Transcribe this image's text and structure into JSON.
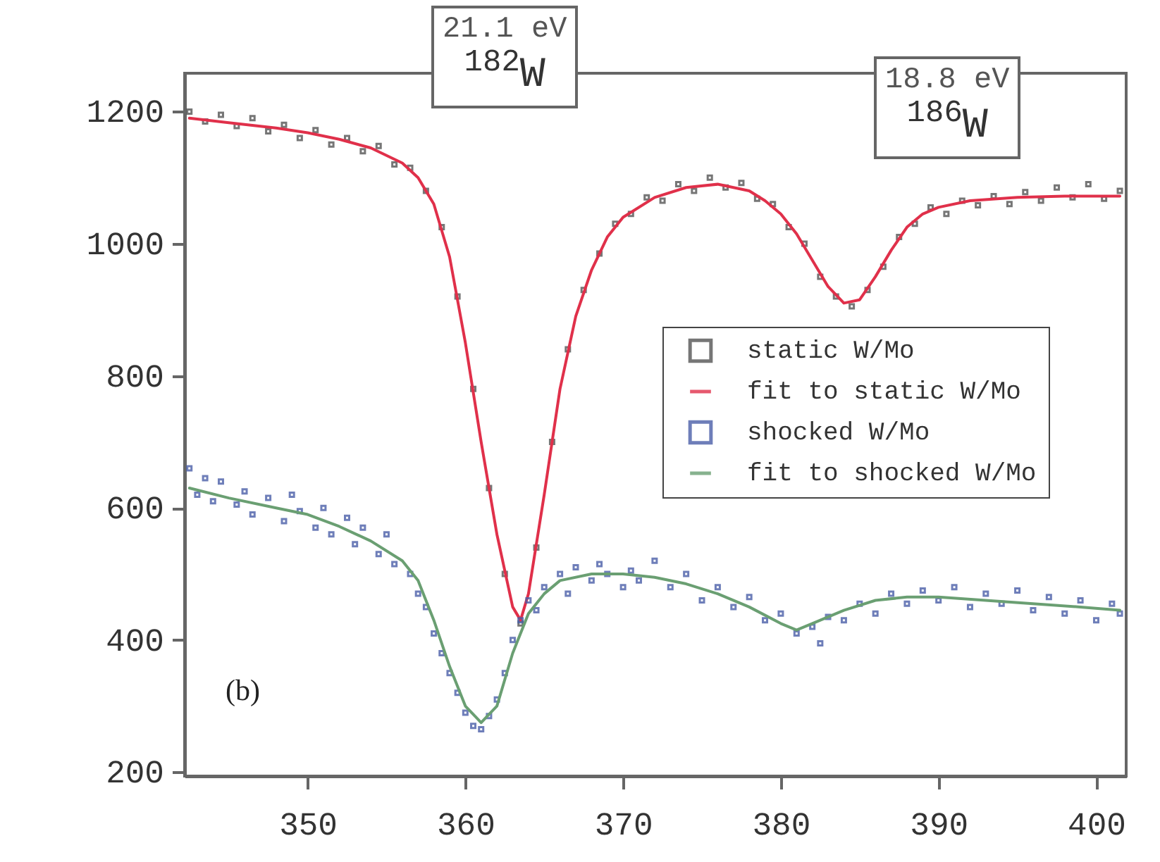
{
  "chart_data": {
    "type": "scatter",
    "xlim": [
      342.2,
      401.9
    ],
    "xticks": [
      350,
      360,
      370,
      380,
      390,
      400
    ],
    "ylim": [
      194,
      1258
    ],
    "yticks": [
      200,
      400,
      600,
      800,
      1000,
      1200
    ],
    "legend": "right",
    "grid": false,
    "line_style": "solid",
    "annotations": [
      "21.1 eV\n$^{182}$W",
      "18.8 eV\n$^{186}$W",
      "(b)"
    ],
    "series": [
      {
        "name": "static W/Mo",
        "marker": "square",
        "color": "#555555",
        "x": [
          342.5,
          343.5,
          344.5,
          345.5,
          346.5,
          347.5,
          348.5,
          349.5,
          350.5,
          351.5,
          352.5,
          353.5,
          354.5,
          355.5,
          356.5,
          357.5,
          358.5,
          359.5,
          360.5,
          361.5,
          362.5,
          363.5,
          364.5,
          365.5,
          366.5,
          367.5,
          368.5,
          369.5,
          370.5,
          371.5,
          372.5,
          373.5,
          374.5,
          375.5,
          376.5,
          377.5,
          378.5,
          379.5,
          380.5,
          381.5,
          382.5,
          383.5,
          384.5,
          385.5,
          386.5,
          387.5,
          388.5,
          389.5,
          390.5,
          391.5,
          392.5,
          393.5,
          394.5,
          395.5,
          396.5,
          397.5,
          398.5,
          399.5,
          400.5,
          401.5
        ],
        "values": [
          1200,
          1185,
          1195,
          1178,
          1190,
          1170,
          1180,
          1160,
          1172,
          1150,
          1160,
          1140,
          1148,
          1120,
          1115,
          1080,
          1025,
          920,
          780,
          630,
          500,
          425,
          540,
          700,
          840,
          930,
          985,
          1030,
          1045,
          1070,
          1065,
          1090,
          1080,
          1100,
          1085,
          1092,
          1068,
          1060,
          1025,
          1000,
          950,
          920,
          905,
          930,
          965,
          1010,
          1030,
          1055,
          1045,
          1065,
          1058,
          1072,
          1060,
          1078,
          1065,
          1085,
          1070,
          1090,
          1068,
          1080
        ]
      },
      {
        "name": "fit to static W/Mo",
        "type": "line",
        "color": "#e0304a",
        "x": [
          342.5,
          345,
          348,
          350,
          352,
          354,
          356,
          357,
          358,
          359,
          360,
          361,
          362,
          363,
          363.5,
          364,
          365,
          366,
          367,
          368,
          369,
          370,
          372,
          374,
          376,
          378,
          379,
          380,
          381,
          382,
          383,
          384,
          385,
          386,
          387,
          388,
          389,
          390,
          392,
          395,
          398,
          401.5
        ],
        "values": [
          1190,
          1183,
          1175,
          1168,
          1158,
          1145,
          1122,
          1100,
          1060,
          980,
          850,
          700,
          560,
          450,
          430,
          470,
          620,
          780,
          890,
          960,
          1010,
          1040,
          1070,
          1085,
          1090,
          1080,
          1065,
          1045,
          1015,
          975,
          935,
          910,
          915,
          950,
          990,
          1025,
          1045,
          1055,
          1065,
          1070,
          1072,
          1072
        ]
      },
      {
        "name": "shocked W/Mo",
        "marker": "square",
        "color": "#4a5fa8",
        "x": [
          342.5,
          343,
          343.5,
          344,
          344.5,
          345.5,
          346,
          346.5,
          347.5,
          348.5,
          349,
          349.5,
          350.5,
          351,
          351.5,
          352.5,
          353,
          353.5,
          354.5,
          355,
          355.5,
          356.5,
          357,
          357.5,
          358,
          358.5,
          359,
          359.5,
          360,
          360.5,
          361,
          361.5,
          362,
          362.5,
          363,
          363.5,
          364,
          364.5,
          365,
          366,
          366.5,
          367,
          368,
          368.5,
          369,
          370,
          370.5,
          371,
          372,
          373,
          374,
          375,
          376,
          377,
          378,
          379,
          380,
          381,
          382,
          382.5,
          383,
          384,
          385,
          386,
          387,
          388,
          389,
          390,
          391,
          392,
          393,
          394,
          395,
          396,
          397,
          398,
          399,
          400,
          401,
          401.5
        ],
        "values": [
          660,
          620,
          645,
          610,
          640,
          605,
          625,
          590,
          615,
          580,
          620,
          595,
          570,
          600,
          560,
          585,
          545,
          570,
          530,
          560,
          515,
          500,
          470,
          450,
          410,
          380,
          350,
          320,
          290,
          270,
          265,
          285,
          310,
          350,
          400,
          430,
          460,
          445,
          480,
          500,
          470,
          510,
          490,
          515,
          500,
          480,
          505,
          490,
          520,
          480,
          500,
          460,
          480,
          450,
          465,
          430,
          440,
          410,
          420,
          395,
          435,
          430,
          455,
          440,
          470,
          455,
          475,
          460,
          480,
          450,
          470,
          455,
          475,
          445,
          465,
          440,
          460,
          430,
          455,
          440
        ]
      },
      {
        "name": "fit to shocked W/Mo",
        "type": "line",
        "color": "#6a9f72",
        "x": [
          342.5,
          345,
          348,
          350,
          352,
          354,
          356,
          357,
          358,
          359,
          360,
          361,
          362,
          363,
          364,
          365,
          366,
          368,
          370,
          372,
          374,
          376,
          378,
          380,
          381,
          382,
          384,
          386,
          388,
          390,
          393,
          396,
          399,
          401.5
        ],
        "values": [
          630,
          615,
          600,
          590,
          572,
          550,
          520,
          490,
          430,
          360,
          300,
          275,
          300,
          380,
          440,
          470,
          490,
          500,
          500,
          495,
          485,
          470,
          450,
          425,
          415,
          425,
          445,
          460,
          465,
          465,
          460,
          455,
          450,
          445
        ]
      }
    ]
  }
}
